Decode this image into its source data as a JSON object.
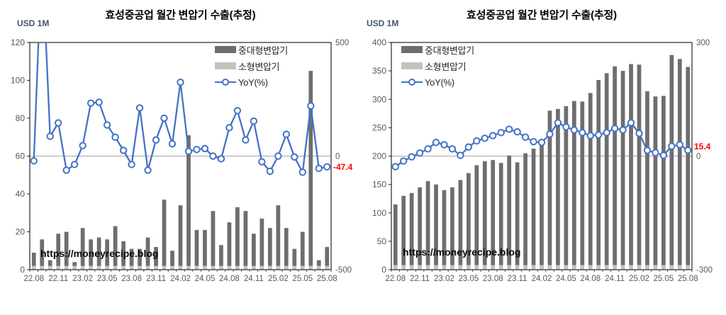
{
  "colors": {
    "bar_large": "#6e6e6e",
    "bar_small": "#c3c3c3",
    "yoy_line": "#4472c4",
    "annotation_red": "#ff0000",
    "axis_text": "#595959",
    "gridline": "#a6a6a6",
    "frame": "#262626"
  },
  "chart_data": [
    {
      "type": "bar",
      "title": "효성중공업 월간 변압기 수출(추정)",
      "ylabel": "USD 1M",
      "watermark": "https://moneyrecipe.blog",
      "legend_position": "top-right",
      "categories": [
        "22.08",
        "22.09",
        "22.10",
        "22.11",
        "22.12",
        "23.01",
        "23.02",
        "23.03",
        "23.04",
        "23.05",
        "23.06",
        "23.07",
        "23.08",
        "23.09",
        "23.10",
        "23.11",
        "23.12",
        "24.01",
        "24.02",
        "24.03",
        "24.04",
        "24.05",
        "24.06",
        "24.07",
        "24.08",
        "24.09",
        "24.10",
        "24.11",
        "24.12",
        "25.01",
        "25.02",
        "25.03",
        "25.04",
        "25.05",
        "25.06",
        "25.07",
        "25.08"
      ],
      "x_tick_labels": [
        "22.08",
        "22.11",
        "23.02",
        "23.05",
        "23.08",
        "23.11",
        "24.02",
        "24.05",
        "24.08",
        "24.11",
        "25.02",
        "25.05",
        "25.08"
      ],
      "ylim": [
        0,
        120
      ],
      "y_ticks": [
        0,
        20,
        40,
        60,
        80,
        100,
        120
      ],
      "y2lim": [
        -500,
        500
      ],
      "y2_ticks": [
        500,
        0,
        -500
      ],
      "gridline_at_right_axis_value": 0,
      "series": [
        {
          "name": "중대형변압기",
          "type": "bar",
          "stack": true,
          "color": "#6e6e6e",
          "values": [
            7,
            14,
            3,
            17,
            18,
            2,
            20,
            14,
            15,
            14,
            21,
            13,
            9,
            9,
            15,
            10,
            35,
            8,
            32,
            69,
            19,
            19,
            29,
            11,
            23,
            31,
            29,
            17,
            25,
            20,
            32,
            20,
            9,
            18,
            103,
            3,
            10
          ]
        },
        {
          "name": "소형변압기",
          "type": "bar",
          "stack": true,
          "color": "#c3c3c3",
          "values": [
            2,
            2,
            2,
            2,
            2,
            2,
            2,
            2,
            2,
            2,
            2,
            2,
            2,
            2,
            2,
            2,
            2,
            2,
            2,
            2,
            2,
            2,
            2,
            2,
            2,
            2,
            2,
            2,
            2,
            2,
            2,
            2,
            2,
            2,
            2,
            2,
            2
          ]
        },
        {
          "name": "YoY(%)",
          "type": "line",
          "axis": "right",
          "color": "#4472c4",
          "values": [
            -21,
            900,
            87,
            146,
            -62,
            -37,
            46,
            233,
            237,
            137,
            83,
            25,
            -37,
            212,
            -62,
            71,
            167,
            54,
            325,
            21,
            29,
            33,
            0,
            -12,
            125,
            200,
            71,
            154,
            -25,
            -67,
            0,
            96,
            -4,
            -71,
            221,
            -54,
            -47.4
          ]
        }
      ],
      "last_value_label": "-47.4"
    },
    {
      "type": "bar",
      "title": "효성중공업 월간 변압기 수출(추정)",
      "ylabel": "USD 1M",
      "watermark": "https://moneyrecipe.blog",
      "legend_position": "top-left",
      "categories": [
        "22.08",
        "22.09",
        "22.10",
        "22.11",
        "22.12",
        "23.01",
        "23.02",
        "23.03",
        "23.04",
        "23.05",
        "23.06",
        "23.07",
        "23.08",
        "23.09",
        "23.10",
        "23.11",
        "23.12",
        "24.01",
        "24.02",
        "24.03",
        "24.04",
        "24.05",
        "24.06",
        "24.07",
        "24.08",
        "24.09",
        "24.10",
        "24.11",
        "24.12",
        "25.01",
        "25.02",
        "25.03",
        "25.04",
        "25.05",
        "25.06",
        "25.07",
        "25.08"
      ],
      "x_tick_labels": [
        "22.08",
        "22.11",
        "23.02",
        "23.05",
        "23.08",
        "23.11",
        "24.02",
        "24.05",
        "24.08",
        "24.11",
        "25.02",
        "25.05",
        "25.08"
      ],
      "ylim": [
        0,
        400
      ],
      "y_ticks": [
        0,
        50,
        100,
        150,
        200,
        250,
        300,
        350,
        400
      ],
      "y2lim": [
        -300,
        300
      ],
      "y2_ticks": [
        300,
        0,
        -300
      ],
      "gridline_at_right_axis_value": 0,
      "series": [
        {
          "name": "중대형변압기",
          "type": "bar",
          "stack": true,
          "color": "#6e6e6e",
          "values": [
            107,
            122,
            127,
            137,
            148,
            142,
            132,
            137,
            150,
            162,
            176,
            183,
            185,
            180,
            193,
            181,
            197,
            205,
            220,
            272,
            275,
            280,
            289,
            288,
            303,
            326,
            338,
            350,
            342,
            354,
            353,
            306,
            297,
            298,
            370,
            363,
            349
          ]
        },
        {
          "name": "소형변압기",
          "type": "bar",
          "stack": true,
          "color": "#c3c3c3",
          "values": [
            8,
            8,
            8,
            8,
            8,
            8,
            8,
            8,
            8,
            8,
            8,
            8,
            8,
            8,
            8,
            8,
            8,
            8,
            8,
            8,
            8,
            8,
            8,
            8,
            8,
            8,
            8,
            8,
            8,
            8,
            8,
            8,
            8,
            8,
            8,
            8,
            8
          ]
        },
        {
          "name": "YoY(%)",
          "type": "line",
          "axis": "right",
          "color": "#4472c4",
          "values": [
            -28,
            -13,
            -2,
            8,
            19,
            36,
            30,
            19,
            2,
            24,
            40,
            47,
            54,
            62,
            71,
            64,
            50,
            38,
            36,
            58,
            88,
            77,
            69,
            62,
            54,
            56,
            62,
            73,
            69,
            88,
            60,
            15,
            9,
            2,
            26,
            30,
            15.4
          ]
        }
      ],
      "last_value_label": "15.4"
    }
  ]
}
